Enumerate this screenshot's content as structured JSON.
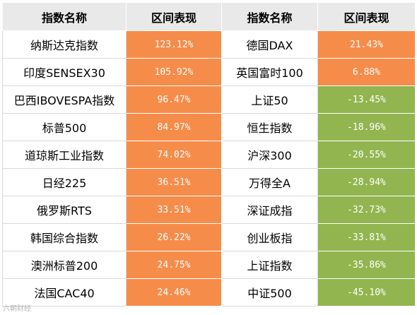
{
  "headers": [
    "指数名称",
    "区间表现",
    "指数名称",
    "区间表现"
  ],
  "left_rows": [
    {
      "name": "纳斯达克指数",
      "value": "123.12%"
    },
    {
      "name": "印度SENSEX30",
      "value": "105.92%"
    },
    {
      "name": "巴西IBOVESPA指数",
      "value": "96.47%"
    },
    {
      "name": "标普500",
      "value": "84.97%"
    },
    {
      "name": "道琼斯工业指数",
      "value": "74.02%"
    },
    {
      "name": "日经225",
      "value": "36.51%"
    },
    {
      "name": "俄罗斯RTS",
      "value": "33.51%"
    },
    {
      "name": "韩国综合指数",
      "value": "26.22%"
    },
    {
      "name": "澳洲标普200",
      "value": "24.75%"
    },
    {
      "name": "法国CAC40",
      "value": "24.46%"
    }
  ],
  "right_rows": [
    {
      "name": "德国DAX",
      "value": "21.43%"
    },
    {
      "name": "英国富时100",
      "value": "6.88%"
    },
    {
      "name": "上证50",
      "value": "-13.45%"
    },
    {
      "name": "恒生指数",
      "value": "-18.96%"
    },
    {
      "name": "沪深300",
      "value": "-20.55%"
    },
    {
      "name": "万得全A",
      "value": "-28.94%"
    },
    {
      "name": "深证成指",
      "value": "-32.73%"
    },
    {
      "name": "创业板指",
      "value": "-33.81%"
    },
    {
      "name": "上证指数",
      "value": "-35.86%"
    },
    {
      "name": "中证500",
      "value": "-45.10%"
    }
  ],
  "watermark": "六朝财经",
  "colors": {
    "positive": "#f68c4a",
    "negative": "#92b54f",
    "header_bg": "#e9e9e9"
  },
  "chart_data": {
    "type": "table",
    "columns": [
      "指数名称",
      "区间表现",
      "指数名称",
      "区间表现"
    ],
    "rows": [
      [
        "纳斯达克指数",
        123.12,
        "德国DAX",
        21.43
      ],
      [
        "印度SENSEX30",
        105.92,
        "英国富时100",
        6.88
      ],
      [
        "巴西IBOVESPA指数",
        96.47,
        "上证50",
        -13.45
      ],
      [
        "标普500",
        84.97,
        "恒生指数",
        -18.96
      ],
      [
        "道琼斯工业指数",
        74.02,
        "沪深300",
        -20.55
      ],
      [
        "日经225",
        36.51,
        "万得全A",
        -28.94
      ],
      [
        "俄罗斯RTS",
        33.51,
        "深证成指",
        -32.73
      ],
      [
        "韩国综合指数",
        26.22,
        "创业板指",
        -33.81
      ],
      [
        "澳洲标普200",
        24.75,
        "上证指数",
        -35.86
      ],
      [
        "法国CAC40",
        24.46,
        "中证500",
        -45.1
      ]
    ]
  }
}
